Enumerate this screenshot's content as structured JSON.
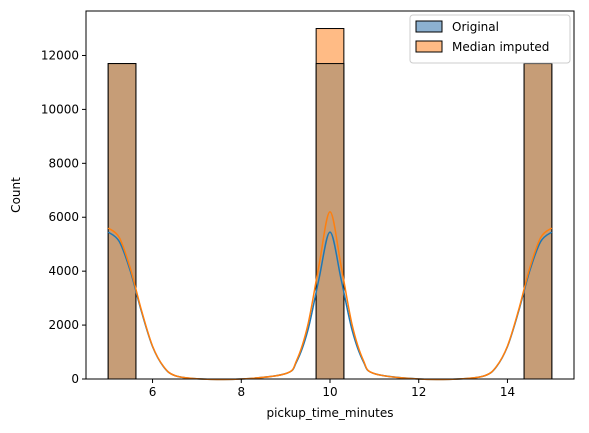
{
  "chart_data": {
    "type": "bar",
    "title": "",
    "xlabel": "pickup_time_minutes",
    "ylabel": "Count",
    "xlim": [
      4.5,
      15.5
    ],
    "ylim": [
      0,
      13650
    ],
    "xticks": [
      6,
      8,
      10,
      12,
      14
    ],
    "yticks": [
      0,
      2000,
      4000,
      6000,
      8000,
      10000,
      12000
    ],
    "grid": false,
    "legend_position": "top-right",
    "bins": [
      {
        "x0": 5.0,
        "x1": 5.625
      },
      {
        "x0": 9.6875,
        "x1": 10.3125
      },
      {
        "x0": 14.375,
        "x1": 15.0
      }
    ],
    "series": [
      {
        "name": "Original",
        "bar_color": "#c69d77",
        "patch_color": "#8cb1d1",
        "line_color": "#1f77b4",
        "values": [
          11700,
          11700,
          11700
        ],
        "kde": {
          "x": [
            5.0,
            5.25,
            5.5,
            5.75,
            6.0,
            6.25,
            6.5,
            7.0,
            8.0,
            9.0,
            9.25,
            9.5,
            9.75,
            10.0,
            10.25,
            10.5,
            10.75,
            11.0,
            12.0,
            13.0,
            13.5,
            13.75,
            14.0,
            14.25,
            14.5,
            14.75,
            15.0
          ],
          "y": [
            5450,
            5100,
            4000,
            2500,
            1200,
            450,
            130,
            10,
            0,
            200,
            650,
            1800,
            3700,
            5450,
            3700,
            1800,
            650,
            200,
            0,
            10,
            130,
            450,
            1200,
            2500,
            4000,
            5100,
            5450
          ]
        }
      },
      {
        "name": "Median imputed",
        "bar_color": "#ffbb85",
        "patch_color": "#ffbb85",
        "line_color": "#ff7f0e",
        "values": [
          11700,
          13000,
          11700
        ],
        "kde": {
          "x": [
            5.0,
            5.25,
            5.5,
            5.75,
            6.0,
            6.25,
            6.5,
            7.0,
            8.0,
            9.0,
            9.25,
            9.5,
            9.75,
            10.0,
            10.25,
            10.5,
            10.75,
            11.0,
            12.0,
            13.0,
            13.5,
            13.75,
            14.0,
            14.25,
            14.5,
            14.75,
            15.0
          ],
          "y": [
            5600,
            5250,
            4100,
            2550,
            1220,
            460,
            130,
            10,
            0,
            200,
            700,
            2000,
            4200,
            6200,
            4200,
            2000,
            700,
            200,
            0,
            10,
            130,
            460,
            1220,
            2550,
            4100,
            5250,
            5600
          ]
        }
      }
    ]
  }
}
